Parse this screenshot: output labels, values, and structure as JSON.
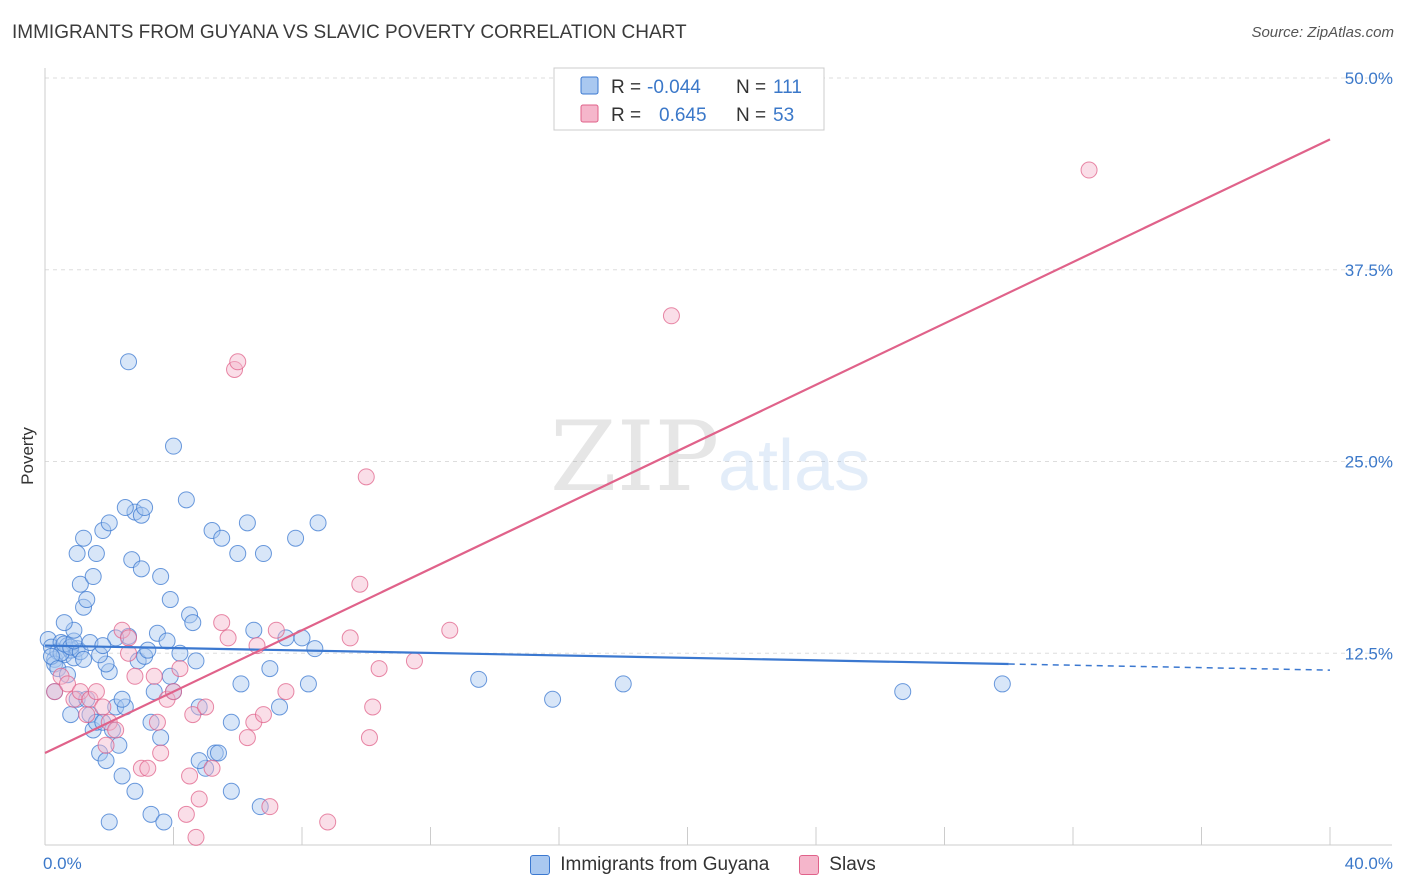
{
  "header": {
    "title": "IMMIGRANTS FROM GUYANA VS SLAVIC POVERTY CORRELATION CHART",
    "source": "Source: ZipAtlas.com"
  },
  "watermark": {
    "zip": "ZIP",
    "atlas": "atlas"
  },
  "colors": {
    "blue": "#3b78d0",
    "blue_fill": "#a9c8f0",
    "pink": "#e0628a",
    "pink_fill": "#f5b6cb",
    "grid": "#dddddd",
    "axis_label": "#3b78c9"
  },
  "chart_data": {
    "type": "scatter",
    "title": "IMMIGRANTS FROM GUYANA VS SLAVIC POVERTY CORRELATION CHART",
    "xlabel": "",
    "ylabel": "Poverty",
    "xlim": [
      0,
      40
    ],
    "ylim": [
      0,
      50
    ],
    "x_tick_labels": [
      "0.0%",
      "40.0%"
    ],
    "y_tick_labels": [
      "12.5%",
      "25.0%",
      "37.5%",
      "50.0%"
    ],
    "y_ticks": [
      12.5,
      25.0,
      37.5,
      50.0
    ],
    "legend": [
      {
        "label_r": "R =",
        "r": "-0.044",
        "label_n": "N =",
        "n": "111"
      },
      {
        "label_r": "R =",
        "r": "0.645",
        "label_n": "N =",
        "n": "53"
      }
    ],
    "series": [
      {
        "name": "Immigrants from Guyana",
        "color": "#3b78d0",
        "trend": {
          "x": [
            0,
            30
          ],
          "y": [
            13.0,
            11.8
          ],
          "dashed_to": [
            40,
            11.4
          ]
        },
        "points": [
          [
            0.1,
            13.4
          ],
          [
            0.2,
            12.9
          ],
          [
            0.3,
            12.1
          ],
          [
            0.4,
            12.6
          ],
          [
            0.5,
            13.2
          ],
          [
            0.6,
            12.4
          ],
          [
            0.7,
            13.0
          ],
          [
            0.8,
            12.7
          ],
          [
            0.9,
            12.2
          ],
          [
            1.0,
            12.8
          ],
          [
            0.3,
            11.8
          ],
          [
            0.5,
            12.5
          ],
          [
            0.6,
            13.1
          ],
          [
            0.8,
            12.9
          ],
          [
            1.1,
            12.6
          ],
          [
            0.2,
            12.3
          ],
          [
            0.4,
            11.5
          ],
          [
            0.9,
            13.3
          ],
          [
            1.2,
            12.1
          ],
          [
            0.7,
            11.1
          ],
          [
            1.0,
            9.5
          ],
          [
            1.3,
            9.5
          ],
          [
            1.4,
            8.5
          ],
          [
            1.5,
            7.5
          ],
          [
            1.6,
            8.0
          ],
          [
            1.7,
            6.0
          ],
          [
            1.8,
            8.0
          ],
          [
            1.9,
            5.5
          ],
          [
            2.0,
            11.3
          ],
          [
            2.1,
            7.5
          ],
          [
            2.2,
            9.0
          ],
          [
            2.3,
            6.5
          ],
          [
            2.4,
            4.5
          ],
          [
            2.5,
            9.0
          ],
          [
            2.6,
            13.6
          ],
          [
            2.7,
            18.6
          ],
          [
            2.8,
            21.7
          ],
          [
            2.9,
            12.0
          ],
          [
            3.0,
            18.0
          ],
          [
            3.1,
            12.3
          ],
          [
            3.2,
            12.7
          ],
          [
            3.3,
            8.0
          ],
          [
            3.4,
            10.0
          ],
          [
            3.5,
            13.8
          ],
          [
            3.6,
            7.0
          ],
          [
            3.8,
            13.3
          ],
          [
            3.9,
            16.0
          ],
          [
            4.0,
            10.0
          ],
          [
            4.2,
            12.5
          ],
          [
            4.5,
            15.0
          ],
          [
            4.6,
            14.5
          ],
          [
            4.7,
            12.0
          ],
          [
            4.8,
            9.0
          ],
          [
            5.0,
            5.0
          ],
          [
            5.2,
            20.5
          ],
          [
            5.3,
            6.0
          ],
          [
            5.5,
            20.0
          ],
          [
            5.8,
            8.0
          ],
          [
            6.0,
            19.0
          ],
          [
            6.1,
            10.5
          ],
          [
            6.3,
            21.0
          ],
          [
            6.5,
            14.0
          ],
          [
            6.8,
            19.0
          ],
          [
            7.0,
            11.5
          ],
          [
            7.3,
            9.0
          ],
          [
            7.5,
            13.5
          ],
          [
            7.8,
            20.0
          ],
          [
            8.0,
            13.5
          ],
          [
            8.4,
            12.8
          ],
          [
            8.5,
            21.0
          ],
          [
            8.2,
            10.5
          ],
          [
            1.0,
            19.0
          ],
          [
            1.1,
            17.0
          ],
          [
            1.2,
            15.5
          ],
          [
            1.3,
            16.0
          ],
          [
            1.5,
            17.5
          ],
          [
            1.6,
            19.0
          ],
          [
            1.8,
            20.5
          ],
          [
            2.0,
            21.0
          ],
          [
            2.5,
            22.0
          ],
          [
            3.0,
            21.5
          ],
          [
            3.1,
            22.0
          ],
          [
            3.6,
            17.5
          ],
          [
            4.0,
            26.0
          ],
          [
            4.4,
            22.5
          ],
          [
            2.6,
            31.5
          ],
          [
            1.2,
            20.0
          ],
          [
            0.9,
            14.0
          ],
          [
            1.4,
            13.2
          ],
          [
            2.2,
            13.5
          ],
          [
            1.9,
            11.8
          ],
          [
            1.7,
            12.4
          ],
          [
            2.8,
            3.5
          ],
          [
            3.3,
            2.0
          ],
          [
            3.7,
            1.5
          ],
          [
            2.0,
            1.5
          ],
          [
            4.8,
            5.5
          ],
          [
            5.4,
            6.0
          ],
          [
            6.7,
            2.5
          ],
          [
            5.8,
            3.5
          ],
          [
            13.5,
            10.8
          ],
          [
            15.8,
            9.5
          ],
          [
            18.0,
            10.5
          ],
          [
            26.7,
            10.0
          ],
          [
            29.8,
            10.5
          ],
          [
            0.6,
            14.5
          ],
          [
            1.8,
            13.0
          ],
          [
            0.3,
            10.0
          ],
          [
            2.4,
            9.5
          ],
          [
            3.9,
            11.0
          ],
          [
            0.8,
            8.5
          ]
        ]
      },
      {
        "name": "Slavs",
        "color": "#e0628a",
        "trend": {
          "x": [
            0,
            40
          ],
          "y": [
            6.0,
            46.0
          ]
        },
        "points": [
          [
            0.3,
            10.0
          ],
          [
            0.5,
            11.0
          ],
          [
            0.7,
            10.5
          ],
          [
            0.9,
            9.5
          ],
          [
            1.1,
            10.0
          ],
          [
            1.3,
            8.5
          ],
          [
            1.4,
            9.5
          ],
          [
            1.6,
            10.0
          ],
          [
            1.8,
            9.0
          ],
          [
            2.0,
            8.0
          ],
          [
            2.2,
            7.5
          ],
          [
            2.4,
            14.0
          ],
          [
            2.6,
            13.5
          ],
          [
            2.8,
            11.0
          ],
          [
            3.0,
            5.0
          ],
          [
            3.2,
            5.0
          ],
          [
            3.4,
            11.0
          ],
          [
            3.5,
            8.0
          ],
          [
            3.6,
            6.0
          ],
          [
            3.8,
            9.5
          ],
          [
            4.0,
            10.0
          ],
          [
            4.2,
            11.5
          ],
          [
            4.4,
            2.0
          ],
          [
            4.6,
            8.5
          ],
          [
            4.8,
            3.0
          ],
          [
            5.0,
            9.0
          ],
          [
            5.2,
            5.0
          ],
          [
            5.5,
            14.5
          ],
          [
            5.7,
            13.5
          ],
          [
            5.9,
            31.0
          ],
          [
            6.0,
            31.5
          ],
          [
            6.3,
            7.0
          ],
          [
            6.5,
            8.0
          ],
          [
            6.8,
            8.5
          ],
          [
            7.0,
            2.5
          ],
          [
            7.2,
            14.0
          ],
          [
            7.5,
            10.0
          ],
          [
            9.5,
            13.5
          ],
          [
            9.8,
            17.0
          ],
          [
            10.0,
            24.0
          ],
          [
            10.2,
            9.0
          ],
          [
            10.4,
            11.5
          ],
          [
            11.5,
            12.0
          ],
          [
            12.6,
            14.0
          ],
          [
            19.5,
            34.5
          ],
          [
            32.5,
            44.0
          ],
          [
            4.5,
            4.5
          ],
          [
            6.6,
            13.0
          ],
          [
            8.8,
            1.5
          ],
          [
            10.1,
            7.0
          ],
          [
            2.6,
            12.5
          ],
          [
            1.9,
            6.5
          ],
          [
            4.7,
            0.5
          ]
        ]
      }
    ]
  },
  "bottom_legend": {
    "items": [
      {
        "label": "Immigrants from Guyana"
      },
      {
        "label": "Slavs"
      }
    ]
  }
}
